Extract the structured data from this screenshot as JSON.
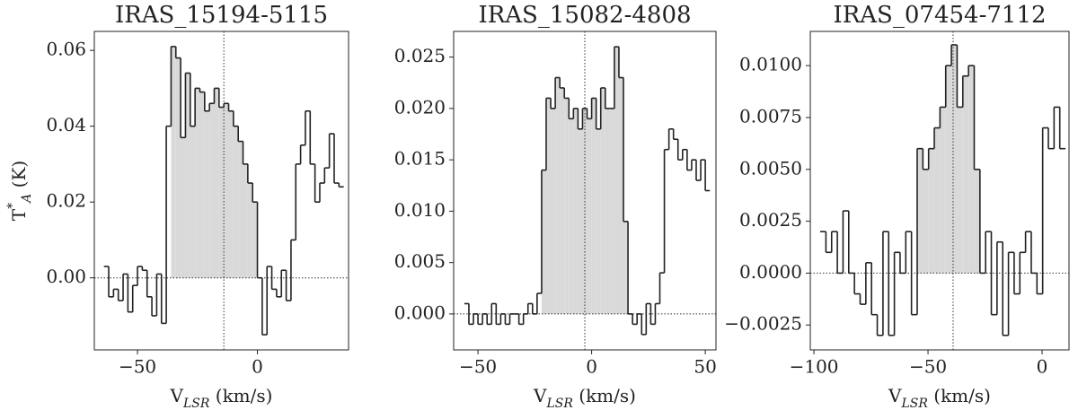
{
  "chart_data": [
    {
      "type": "step",
      "title": "IRAS_15194-5115",
      "xlabel": {
        "base": "V",
        "sub": "LSR",
        "unit": " (km/s)"
      },
      "ylabel": {
        "base": "T",
        "sup": "*",
        "sub": "A",
        "unit": " (K)"
      },
      "x": [
        -63,
        -61,
        -59,
        -57,
        -55,
        -53,
        -51,
        -49,
        -47,
        -45,
        -43,
        -41,
        -39,
        -37,
        -35,
        -33,
        -31,
        -29,
        -27,
        -25,
        -23,
        -21,
        -19,
        -17,
        -15,
        -13,
        -11,
        -9,
        -7,
        -5,
        -3,
        -1,
        1,
        3,
        5,
        7,
        9,
        11,
        13,
        15,
        17,
        19,
        21,
        23,
        25,
        27,
        29,
        31,
        33,
        35
      ],
      "series": [
        {
          "color": "#222222",
          "values": [
            0.003,
            -0.005,
            -0.003,
            -0.006,
            0.001,
            -0.009,
            -0.002,
            0.003,
            0.002,
            -0.005,
            -0.01,
            0.001,
            -0.012,
            0.04,
            0.061,
            0.058,
            0.037,
            0.054,
            0.04,
            0.05,
            0.049,
            0.044,
            0.046,
            0.05,
            0.045,
            0.046,
            0.044,
            0.04,
            0.036,
            0.03,
            0.025,
            0.02,
            0.0,
            -0.015,
            0.003,
            -0.003,
            -0.005,
            0.002,
            -0.006,
            0.01,
            0.03,
            0.035,
            0.044,
            0.03,
            0.02,
            0.025,
            0.029,
            0.038,
            0.025,
            0.024
          ]
        }
      ],
      "fill_between": [
        -36,
        0
      ],
      "fill_color": "#d9d9d9",
      "vline": -14,
      "hline": 0,
      "xlim": [
        -68,
        38
      ],
      "ylim": [
        -0.019,
        0.065
      ],
      "xticks": [
        {
          "value": -50,
          "label": "−50"
        },
        0
      ],
      "yticks": [
        {
          "value": 0,
          "label": "0.00"
        },
        {
          "value": 0.02,
          "label": "0.02"
        },
        {
          "value": 0.04,
          "label": "0.04"
        },
        {
          "value": 0.06,
          "label": "0.06"
        }
      ]
    },
    {
      "type": "step",
      "title": "IRAS_15082-4808",
      "xlabel": {
        "base": "V",
        "sub": "LSR",
        "unit": " (km/s)"
      },
      "x": [
        -55,
        -53,
        -51,
        -49,
        -47,
        -45,
        -43,
        -41,
        -39,
        -37,
        -35,
        -33,
        -31,
        -29,
        -27,
        -25,
        -23,
        -21,
        -19,
        -17,
        -15,
        -13,
        -11,
        -9,
        -7,
        -5,
        -3,
        -1,
        1,
        3,
        5,
        7,
        9,
        11,
        13,
        15,
        17,
        19,
        21,
        23,
        25,
        27,
        29,
        31,
        33,
        35,
        37,
        39,
        41,
        43,
        45,
        47,
        49,
        51
      ],
      "series": [
        {
          "color": "#222222",
          "values": [
            0.001,
            -0.001,
            0.0,
            -0.001,
            0.0,
            -0.001,
            0.001,
            -0.001,
            0.0,
            -0.001,
            0.0,
            0.0,
            -0.001,
            0.0,
            0.001,
            0.0,
            0.002,
            0.014,
            0.021,
            0.02,
            0.023,
            0.022,
            0.021,
            0.019,
            0.02,
            0.018,
            0.02,
            0.019,
            0.021,
            0.018,
            0.022,
            0.02,
            0.02,
            0.026,
            0.023,
            0.009,
            0.0,
            -0.001,
            0.0,
            -0.002,
            0.001,
            -0.001,
            0.001,
            0.004,
            0.016,
            0.018,
            0.017,
            0.015,
            0.016,
            0.014,
            0.015,
            0.013,
            0.015,
            0.012
          ]
        }
      ],
      "fill_between": [
        -22,
        15
      ],
      "fill_color": "#d9d9d9",
      "vline": -3,
      "hline": 0,
      "xlim": [
        -60.7,
        54.7
      ],
      "ylim": [
        -0.0035,
        0.0275
      ],
      "xticks": [
        {
          "value": -50,
          "label": "−50"
        },
        0,
        50
      ],
      "yticks": [
        {
          "value": 0,
          "label": "0.000"
        },
        {
          "value": 0.005,
          "label": "0.005"
        },
        {
          "value": 0.01,
          "label": "0.010"
        },
        {
          "value": 0.015,
          "label": "0.015"
        },
        {
          "value": 0.02,
          "label": "0.020"
        },
        {
          "value": 0.025,
          "label": "0.025"
        }
      ]
    },
    {
      "type": "step",
      "title": "IRAS_07454-7112",
      "xlabel": {
        "base": "V",
        "sub": "LSR",
        "unit": " (km/s)"
      },
      "x": [
        -96,
        -93.5,
        -91,
        -88.5,
        -86,
        -83.5,
        -81,
        -78.5,
        -76,
        -73.5,
        -71,
        -68.5,
        -66,
        -63.5,
        -61,
        -58.5,
        -56,
        -53.5,
        -51,
        -48.5,
        -46,
        -43.5,
        -41,
        -38.5,
        -36,
        -33.5,
        -31,
        -28.5,
        -26,
        -23.5,
        -21,
        -18.5,
        -16,
        -13.5,
        -11,
        -8.5,
        -6,
        -3.5,
        -1,
        1.5,
        4,
        6.5,
        9
      ],
      "series": [
        {
          "color": "#222222",
          "values": [
            0.002,
            0.001,
            0.002,
            0.0,
            0.003,
            0.0,
            -0.001,
            -0.0015,
            0.0005,
            -0.002,
            -0.003,
            0.002,
            -0.003,
            0.001,
            0.0,
            0.002,
            -0.002,
            0.006,
            0.005,
            0.006,
            0.007,
            0.008,
            0.01,
            0.011,
            0.008,
            0.0095,
            0.01,
            0.005,
            0.0,
            0.002,
            -0.002,
            0.0015,
            -0.003,
            0.001,
            -0.001,
            0.001,
            0.002,
            0.0,
            -0.001,
            0.007,
            0.006,
            0.008,
            0.006
          ]
        }
      ],
      "fill_between": [
        -54,
        -27
      ],
      "fill_color": "#d9d9d9",
      "vline": -39,
      "hline": 0,
      "xlim": [
        -101.6,
        11.8
      ],
      "ylim": [
        -0.0037,
        0.01165
      ],
      "xticks": [
        {
          "value": -100,
          "label": "−100"
        },
        {
          "value": -50,
          "label": "−50"
        },
        0
      ],
      "yticks": [
        {
          "value": -0.0025,
          "label": "−0.0025"
        },
        {
          "value": 0,
          "label": "0.0000"
        },
        {
          "value": 0.0025,
          "label": "0.0025"
        },
        {
          "value": 0.005,
          "label": "0.0050"
        },
        {
          "value": 0.0075,
          "label": "0.0075"
        },
        {
          "value": 0.01,
          "label": "0.0100"
        }
      ]
    }
  ]
}
